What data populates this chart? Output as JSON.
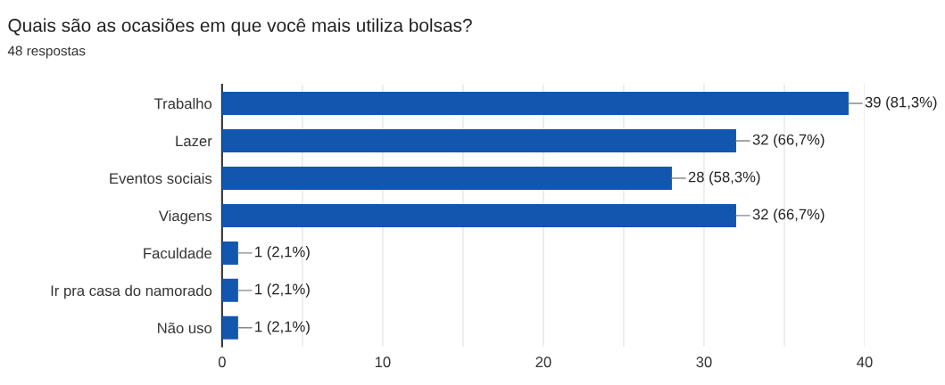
{
  "chart_data": {
    "type": "bar",
    "orientation": "horizontal",
    "title": "Quais são as ocasiões em que você mais utiliza bolsas?",
    "subtitle": "48 respostas",
    "categories": [
      "Trabalho",
      "Lazer",
      "Eventos sociais",
      "Viagens",
      "Faculdade",
      "Ir pra casa do namorado",
      "Não uso"
    ],
    "values": [
      39,
      32,
      28,
      32,
      1,
      1,
      1
    ],
    "value_labels": [
      "39 (81,3%)",
      "32 (66,7%)",
      "28 (58,3%)",
      "32 (66,7%)",
      "1 (2,1%)",
      "1 (2,1%)",
      "1 (2,1%)"
    ],
    "color": "#1256b0",
    "xlim": [
      0,
      40
    ],
    "xticks": [
      0,
      {
        "value": 5,
        "label": null
      },
      10,
      {
        "value": 15,
        "label": null
      },
      20,
      {
        "value": 25,
        "label": null
      },
      30,
      {
        "value": 35,
        "label": null
      },
      40
    ],
    "grid": "x"
  }
}
